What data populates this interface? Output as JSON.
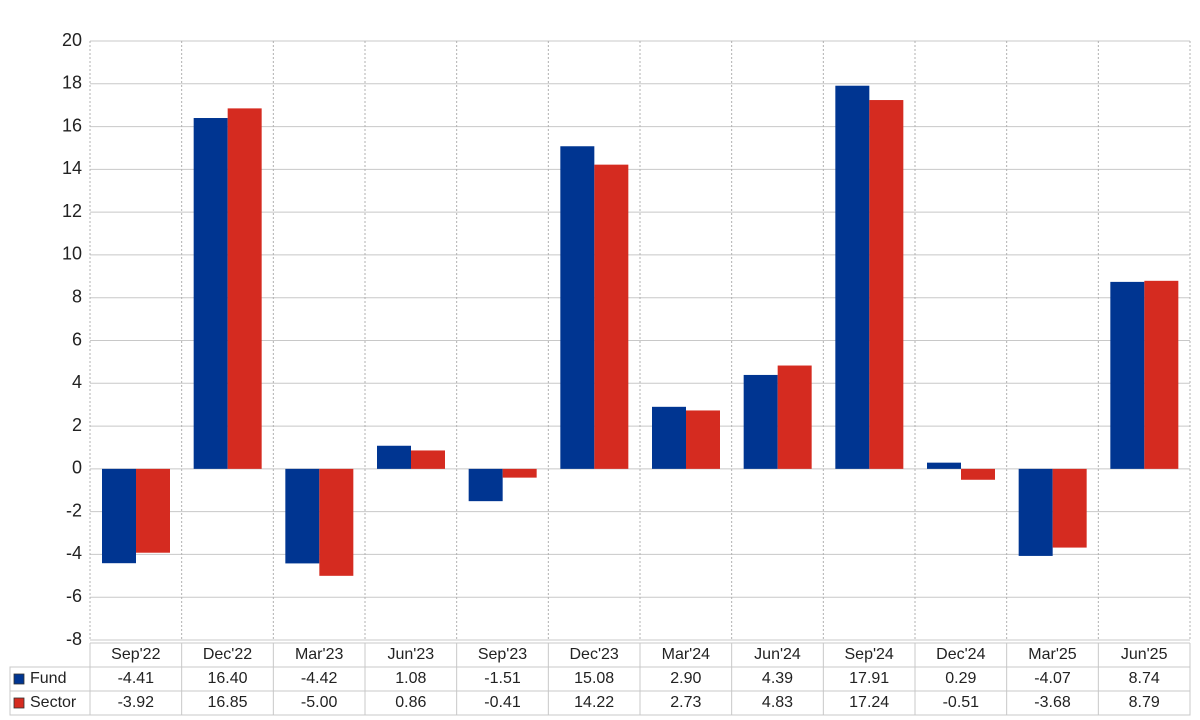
{
  "chart_data": {
    "type": "bar",
    "categories": [
      "Sep'22",
      "Dec'22",
      "Mar'23",
      "Jun'23",
      "Sep'23",
      "Dec'23",
      "Mar'24",
      "Jun'24",
      "Sep'24",
      "Dec'24",
      "Mar'25",
      "Jun'25"
    ],
    "series": [
      {
        "name": "Fund",
        "color": "#003591",
        "values": [
          -4.41,
          16.4,
          -4.42,
          1.08,
          -1.51,
          15.08,
          2.9,
          4.39,
          17.91,
          0.29,
          -4.07,
          8.74
        ],
        "value_labels": [
          "-4.41",
          "16.40",
          "-4.42",
          "1.08",
          "-1.51",
          "15.08",
          "2.90",
          "4.39",
          "17.91",
          "0.29",
          "-4.07",
          "8.74"
        ]
      },
      {
        "name": "Sector",
        "color": "#d52b20",
        "values": [
          -3.92,
          16.85,
          -5.0,
          0.86,
          -0.41,
          14.22,
          2.73,
          4.83,
          17.24,
          -0.51,
          -3.68,
          8.79
        ],
        "value_labels": [
          "-3.92",
          "16.85",
          "-5.00",
          "0.86",
          "-0.41",
          "14.22",
          "2.73",
          "4.83",
          "17.24",
          "-0.51",
          "-3.68",
          "8.79"
        ]
      }
    ],
    "ylim": [
      -8,
      20
    ],
    "yticks": [
      -8,
      -6,
      -4,
      -2,
      0,
      2,
      4,
      6,
      8,
      10,
      12,
      14,
      16,
      18,
      20
    ],
    "grid": true,
    "negative_color": "#e8000b"
  }
}
